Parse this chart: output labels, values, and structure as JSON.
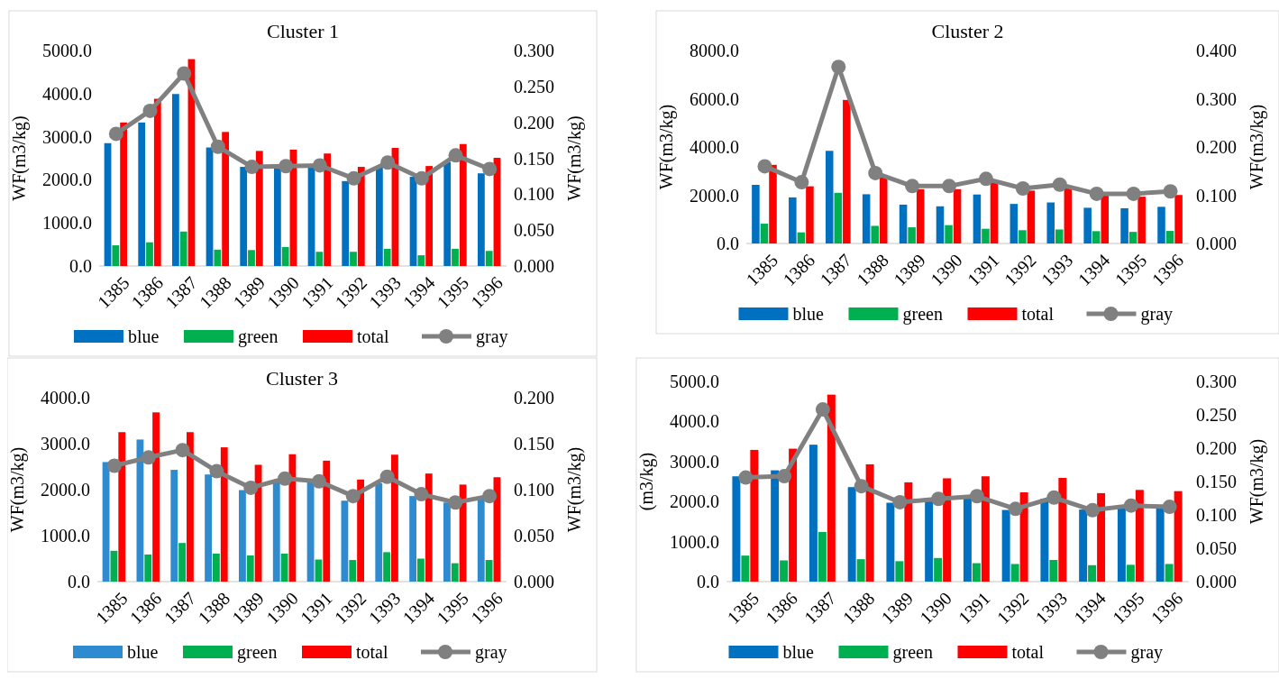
{
  "chart_data": [
    {
      "type": "bar",
      "title": "Cluster 1",
      "ylabel": "WF(m3/kg)",
      "y2label": "WF(m3/kg)",
      "legend": "bottom",
      "marker": "circle",
      "grid": false,
      "categories": [
        "1385",
        "1386",
        "1387",
        "1388",
        "1389",
        "1390",
        "1391",
        "1392",
        "1393",
        "1394",
        "1395",
        "1396"
      ],
      "ylim": [
        0,
        5000
      ],
      "yticks": [
        {
          "value": 0,
          "label": "0.0"
        },
        {
          "value": 1000,
          "label": "1000.0"
        },
        {
          "value": 2000,
          "label": "2000.0"
        },
        {
          "value": 3000,
          "label": "3000.0"
        },
        {
          "value": 4000,
          "label": "4000.0"
        },
        {
          "value": 5000,
          "label": "5000.0"
        }
      ],
      "y2lim": [
        0,
        0.3
      ],
      "y2ticks": [
        {
          "value": 0,
          "label": "0.000"
        },
        {
          "value": 0.05,
          "label": "0.050"
        },
        {
          "value": 0.1,
          "label": "0.100"
        },
        {
          "value": 0.15,
          "label": "0.150"
        },
        {
          "value": 0.2,
          "label": "0.200"
        },
        {
          "value": 0.25,
          "label": "0.250"
        },
        {
          "value": 0.3,
          "label": "0.300"
        }
      ],
      "series": [
        {
          "name": "blue",
          "color": "#0070c0",
          "values": [
            2850,
            3330,
            3990,
            2750,
            2300,
            2260,
            2280,
            1970,
            2300,
            2070,
            2410,
            2150
          ]
        },
        {
          "name": "green",
          "color": "#00b050",
          "values": [
            480,
            550,
            800,
            380,
            370,
            440,
            330,
            330,
            400,
            250,
            400,
            350
          ]
        },
        {
          "name": "total",
          "color": "#ff0000",
          "values": [
            3330,
            3880,
            4800,
            3110,
            2670,
            2700,
            2610,
            2300,
            2740,
            2320,
            2830,
            2510
          ]
        },
        {
          "name": "gray",
          "color": "#808080",
          "type": "line",
          "axis": "y2",
          "values": [
            0.184,
            0.216,
            0.268,
            0.166,
            0.138,
            0.139,
            0.14,
            0.122,
            0.144,
            0.122,
            0.154,
            0.135
          ]
        }
      ]
    },
    {
      "type": "bar",
      "title": "Cluster 2",
      "ylabel": "WF(m3/kg)",
      "y2label": "WF(m3/kg)",
      "legend": "bottom",
      "marker": "circle",
      "grid": false,
      "categories": [
        "1385",
        "1386",
        "1387",
        "1388",
        "1389",
        "1390",
        "1391",
        "1392",
        "1393",
        "1394",
        "1395",
        "1396"
      ],
      "ylim": [
        0,
        8000
      ],
      "yticks": [
        {
          "value": 0,
          "label": "0.0"
        },
        {
          "value": 2000,
          "label": "2000.0"
        },
        {
          "value": 4000,
          "label": "4000.0"
        },
        {
          "value": 6000,
          "label": "6000.0"
        },
        {
          "value": 8000,
          "label": "8000.0"
        }
      ],
      "y2lim": [
        0,
        0.4
      ],
      "y2ticks": [
        {
          "value": 0,
          "label": "0.000"
        },
        {
          "value": 0.1,
          "label": "0.100"
        },
        {
          "value": 0.2,
          "label": "0.200"
        },
        {
          "value": 0.3,
          "label": "0.300"
        },
        {
          "value": 0.4,
          "label": "0.400"
        }
      ],
      "series": [
        {
          "name": "blue",
          "color": "#0070c0",
          "values": [
            2430,
            1910,
            3840,
            2040,
            1610,
            1540,
            2030,
            1640,
            1700,
            1480,
            1460,
            1520
          ]
        },
        {
          "name": "green",
          "color": "#00b050",
          "values": [
            820,
            460,
            2100,
            730,
            670,
            760,
            610,
            550,
            580,
            510,
            480,
            520
          ]
        },
        {
          "name": "total",
          "color": "#ff0000",
          "values": [
            3260,
            2370,
            5950,
            2830,
            2250,
            2250,
            2530,
            2190,
            2280,
            2010,
            1940,
            2010
          ]
        },
        {
          "name": "gray",
          "color": "#808080",
          "type": "line",
          "axis": "y2",
          "values": [
            0.16,
            0.127,
            0.366,
            0.146,
            0.119,
            0.119,
            0.134,
            0.114,
            0.122,
            0.103,
            0.103,
            0.108
          ]
        }
      ]
    },
    {
      "type": "bar",
      "title": "Cluster 3",
      "ylabel": "WF(m3/kg)",
      "y2label": "WF(m3/kg)",
      "legend": "bottom",
      "marker": "circle",
      "grid": false,
      "categories": [
        "1385",
        "1386",
        "1387",
        "1388",
        "1389",
        "1390",
        "1391",
        "1392",
        "1393",
        "1394",
        "1395",
        "1396"
      ],
      "ylim": [
        0,
        4000
      ],
      "yticks": [
        {
          "value": 0,
          "label": "0.0"
        },
        {
          "value": 1000,
          "label": "1000.0"
        },
        {
          "value": 2000,
          "label": "2000.0"
        },
        {
          "value": 3000,
          "label": "3000.0"
        },
        {
          "value": 4000,
          "label": "4000.0"
        }
      ],
      "y2lim": [
        0,
        0.2
      ],
      "y2ticks": [
        {
          "value": 0,
          "label": "0.000"
        },
        {
          "value": 0.05,
          "label": "0.050"
        },
        {
          "value": 0.1,
          "label": "0.100"
        },
        {
          "value": 0.15,
          "label": "0.150"
        },
        {
          "value": 0.2,
          "label": "0.200"
        }
      ],
      "series": [
        {
          "name": "blue",
          "color": "#2e8bd0",
          "values": [
            2600,
            3090,
            2430,
            2330,
            1990,
            2210,
            2180,
            1760,
            2140,
            1860,
            1720,
            1790
          ]
        },
        {
          "name": "green",
          "color": "#00b050",
          "values": [
            670,
            590,
            840,
            610,
            570,
            610,
            480,
            470,
            640,
            500,
            400,
            470
          ]
        },
        {
          "name": "total",
          "color": "#ff0000",
          "values": [
            3250,
            3680,
            3250,
            2920,
            2540,
            2770,
            2630,
            2220,
            2760,
            2350,
            2110,
            2270
          ]
        },
        {
          "name": "gray",
          "color": "#808080",
          "type": "line",
          "axis": "y2",
          "values": [
            0.126,
            0.135,
            0.143,
            0.12,
            0.102,
            0.112,
            0.109,
            0.093,
            0.114,
            0.095,
            0.086,
            0.093
          ]
        }
      ]
    },
    {
      "type": "bar",
      "ylabel": "(m3/kg)",
      "y2label": "WF(m3/kg)",
      "legend": "bottom",
      "marker": "circle",
      "grid": false,
      "categories": [
        "1385",
        "1386",
        "1387",
        "1388",
        "1389",
        "1390",
        "1391",
        "1392",
        "1393",
        "1394",
        "1395",
        "1396"
      ],
      "ylim": [
        0,
        5000
      ],
      "yticks": [
        {
          "value": 0,
          "label": "0.0"
        },
        {
          "value": 1000,
          "label": "1000.0"
        },
        {
          "value": 2000,
          "label": "2000.0"
        },
        {
          "value": 3000,
          "label": "3000.0"
        },
        {
          "value": 4000,
          "label": "4000.0"
        },
        {
          "value": 5000,
          "label": "5000.0"
        }
      ],
      "y2lim": [
        0,
        0.3
      ],
      "y2ticks": [
        {
          "value": 0,
          "label": "0.000"
        },
        {
          "value": 0.05,
          "label": "0.050"
        },
        {
          "value": 0.1,
          "label": "0.100"
        },
        {
          "value": 0.15,
          "label": "0.150"
        },
        {
          "value": 0.2,
          "label": "0.200"
        },
        {
          "value": 0.25,
          "label": "0.250"
        },
        {
          "value": 0.3,
          "label": "0.300"
        }
      ],
      "series": [
        {
          "name": "blue",
          "color": "#0070c0",
          "values": [
            2630,
            2780,
            3420,
            2360,
            1970,
            2020,
            2090,
            1790,
            2070,
            1800,
            1850,
            1840
          ]
        },
        {
          "name": "green",
          "color": "#00b050",
          "values": [
            650,
            530,
            1240,
            560,
            510,
            590,
            460,
            440,
            540,
            410,
            420,
            440
          ]
        },
        {
          "name": "total",
          "color": "#ff0000",
          "values": [
            3290,
            3320,
            4670,
            2930,
            2480,
            2580,
            2630,
            2230,
            2590,
            2210,
            2290,
            2260
          ]
        },
        {
          "name": "gray",
          "color": "#808080",
          "type": "line",
          "axis": "y2",
          "values": [
            0.156,
            0.158,
            0.258,
            0.143,
            0.119,
            0.124,
            0.128,
            0.109,
            0.126,
            0.107,
            0.114,
            0.112
          ]
        }
      ]
    }
  ]
}
